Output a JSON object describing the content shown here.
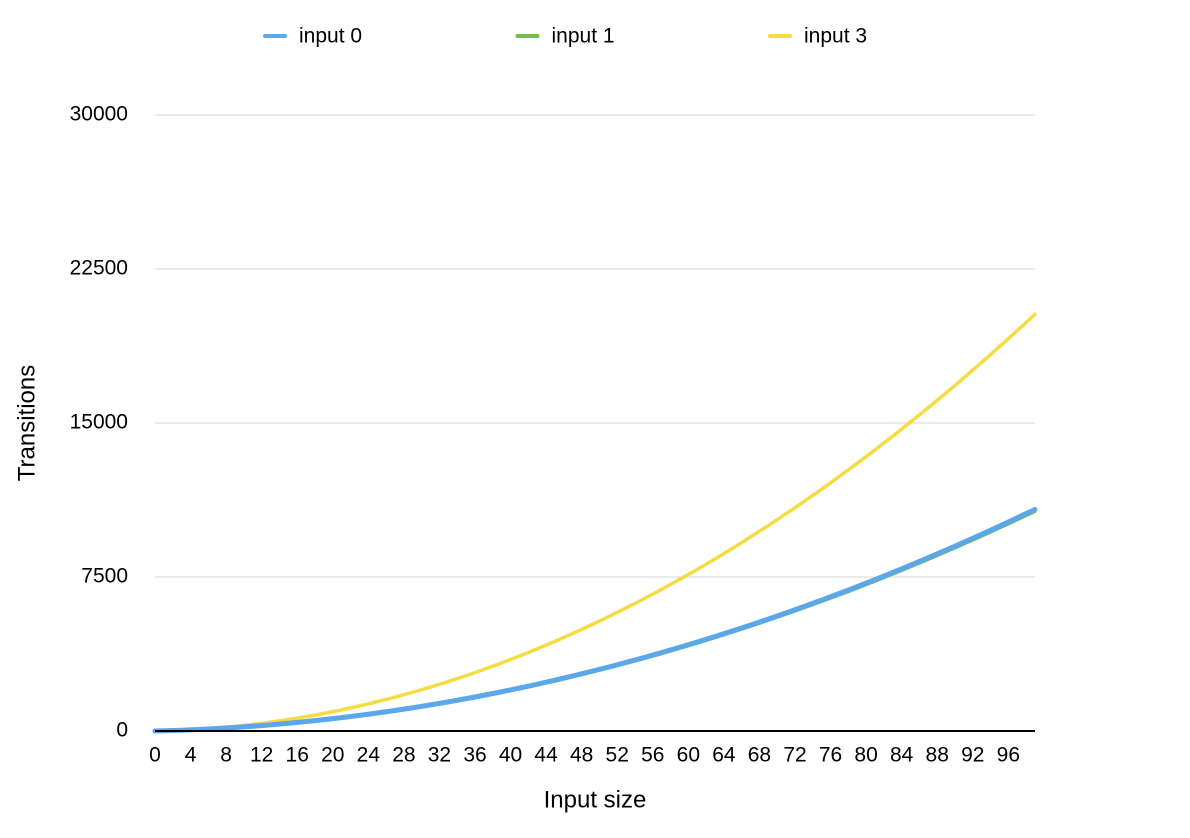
{
  "chart_data": {
    "type": "line",
    "x_label": "Input size",
    "y_label": "Transitions",
    "x": [
      0,
      3,
      6,
      9,
      12,
      15,
      18,
      21,
      24,
      27,
      30,
      33,
      36,
      39,
      42,
      45,
      48,
      51,
      54,
      57,
      60,
      63,
      66,
      69,
      72,
      75,
      78,
      81,
      84,
      87,
      90,
      93,
      96,
      99
    ],
    "series": [
      {
        "name": "input 0",
        "color": "#5aa7ea",
        "values": [
          0,
          39,
          96,
          171,
          264,
          375,
          504,
          651,
          816,
          999,
          1200,
          1419,
          1656,
          1911,
          2184,
          2475,
          2784,
          3111,
          3456,
          3819,
          4200,
          4599,
          5016,
          5451,
          5904,
          6375,
          6864,
          7371,
          7896,
          8439,
          9000,
          9579,
          10176,
          10791
        ]
      },
      {
        "name": "input 1",
        "color": "#6fbe4a",
        "values": [
          0,
          36,
          90,
          162,
          252,
          360,
          486,
          630,
          792,
          972,
          1170,
          1386,
          1620,
          1872,
          2142,
          2430,
          2736,
          3060,
          3402,
          3762,
          4140,
          4536,
          4950,
          5382,
          5832,
          6300,
          6786,
          7290,
          7812,
          8352,
          8910,
          9486,
          10080,
          10692
        ]
      },
      {
        "name": "input 3",
        "color": "#f5dc43",
        "values": [
          0,
          39,
          114,
          225,
          372,
          555,
          774,
          1029,
          1320,
          1647,
          2010,
          2409,
          2844,
          3315,
          3822,
          4365,
          4944,
          5559,
          6210,
          6897,
          7620,
          8379,
          9174,
          10005,
          10872,
          11775,
          12714,
          13689,
          14700,
          15747,
          16830,
          17949,
          19104,
          20295
        ]
      }
    ],
    "xlim": [
      0,
      99
    ],
    "xticks": [
      0,
      4,
      8,
      12,
      16,
      20,
      24,
      28,
      32,
      36,
      40,
      44,
      48,
      52,
      56,
      60,
      64,
      68,
      72,
      76,
      80,
      84,
      88,
      92,
      96
    ],
    "ylim": [
      0,
      30000
    ],
    "yticks": [
      0,
      7500,
      15000,
      22500,
      30000
    ],
    "grid": true,
    "legend": "top"
  }
}
